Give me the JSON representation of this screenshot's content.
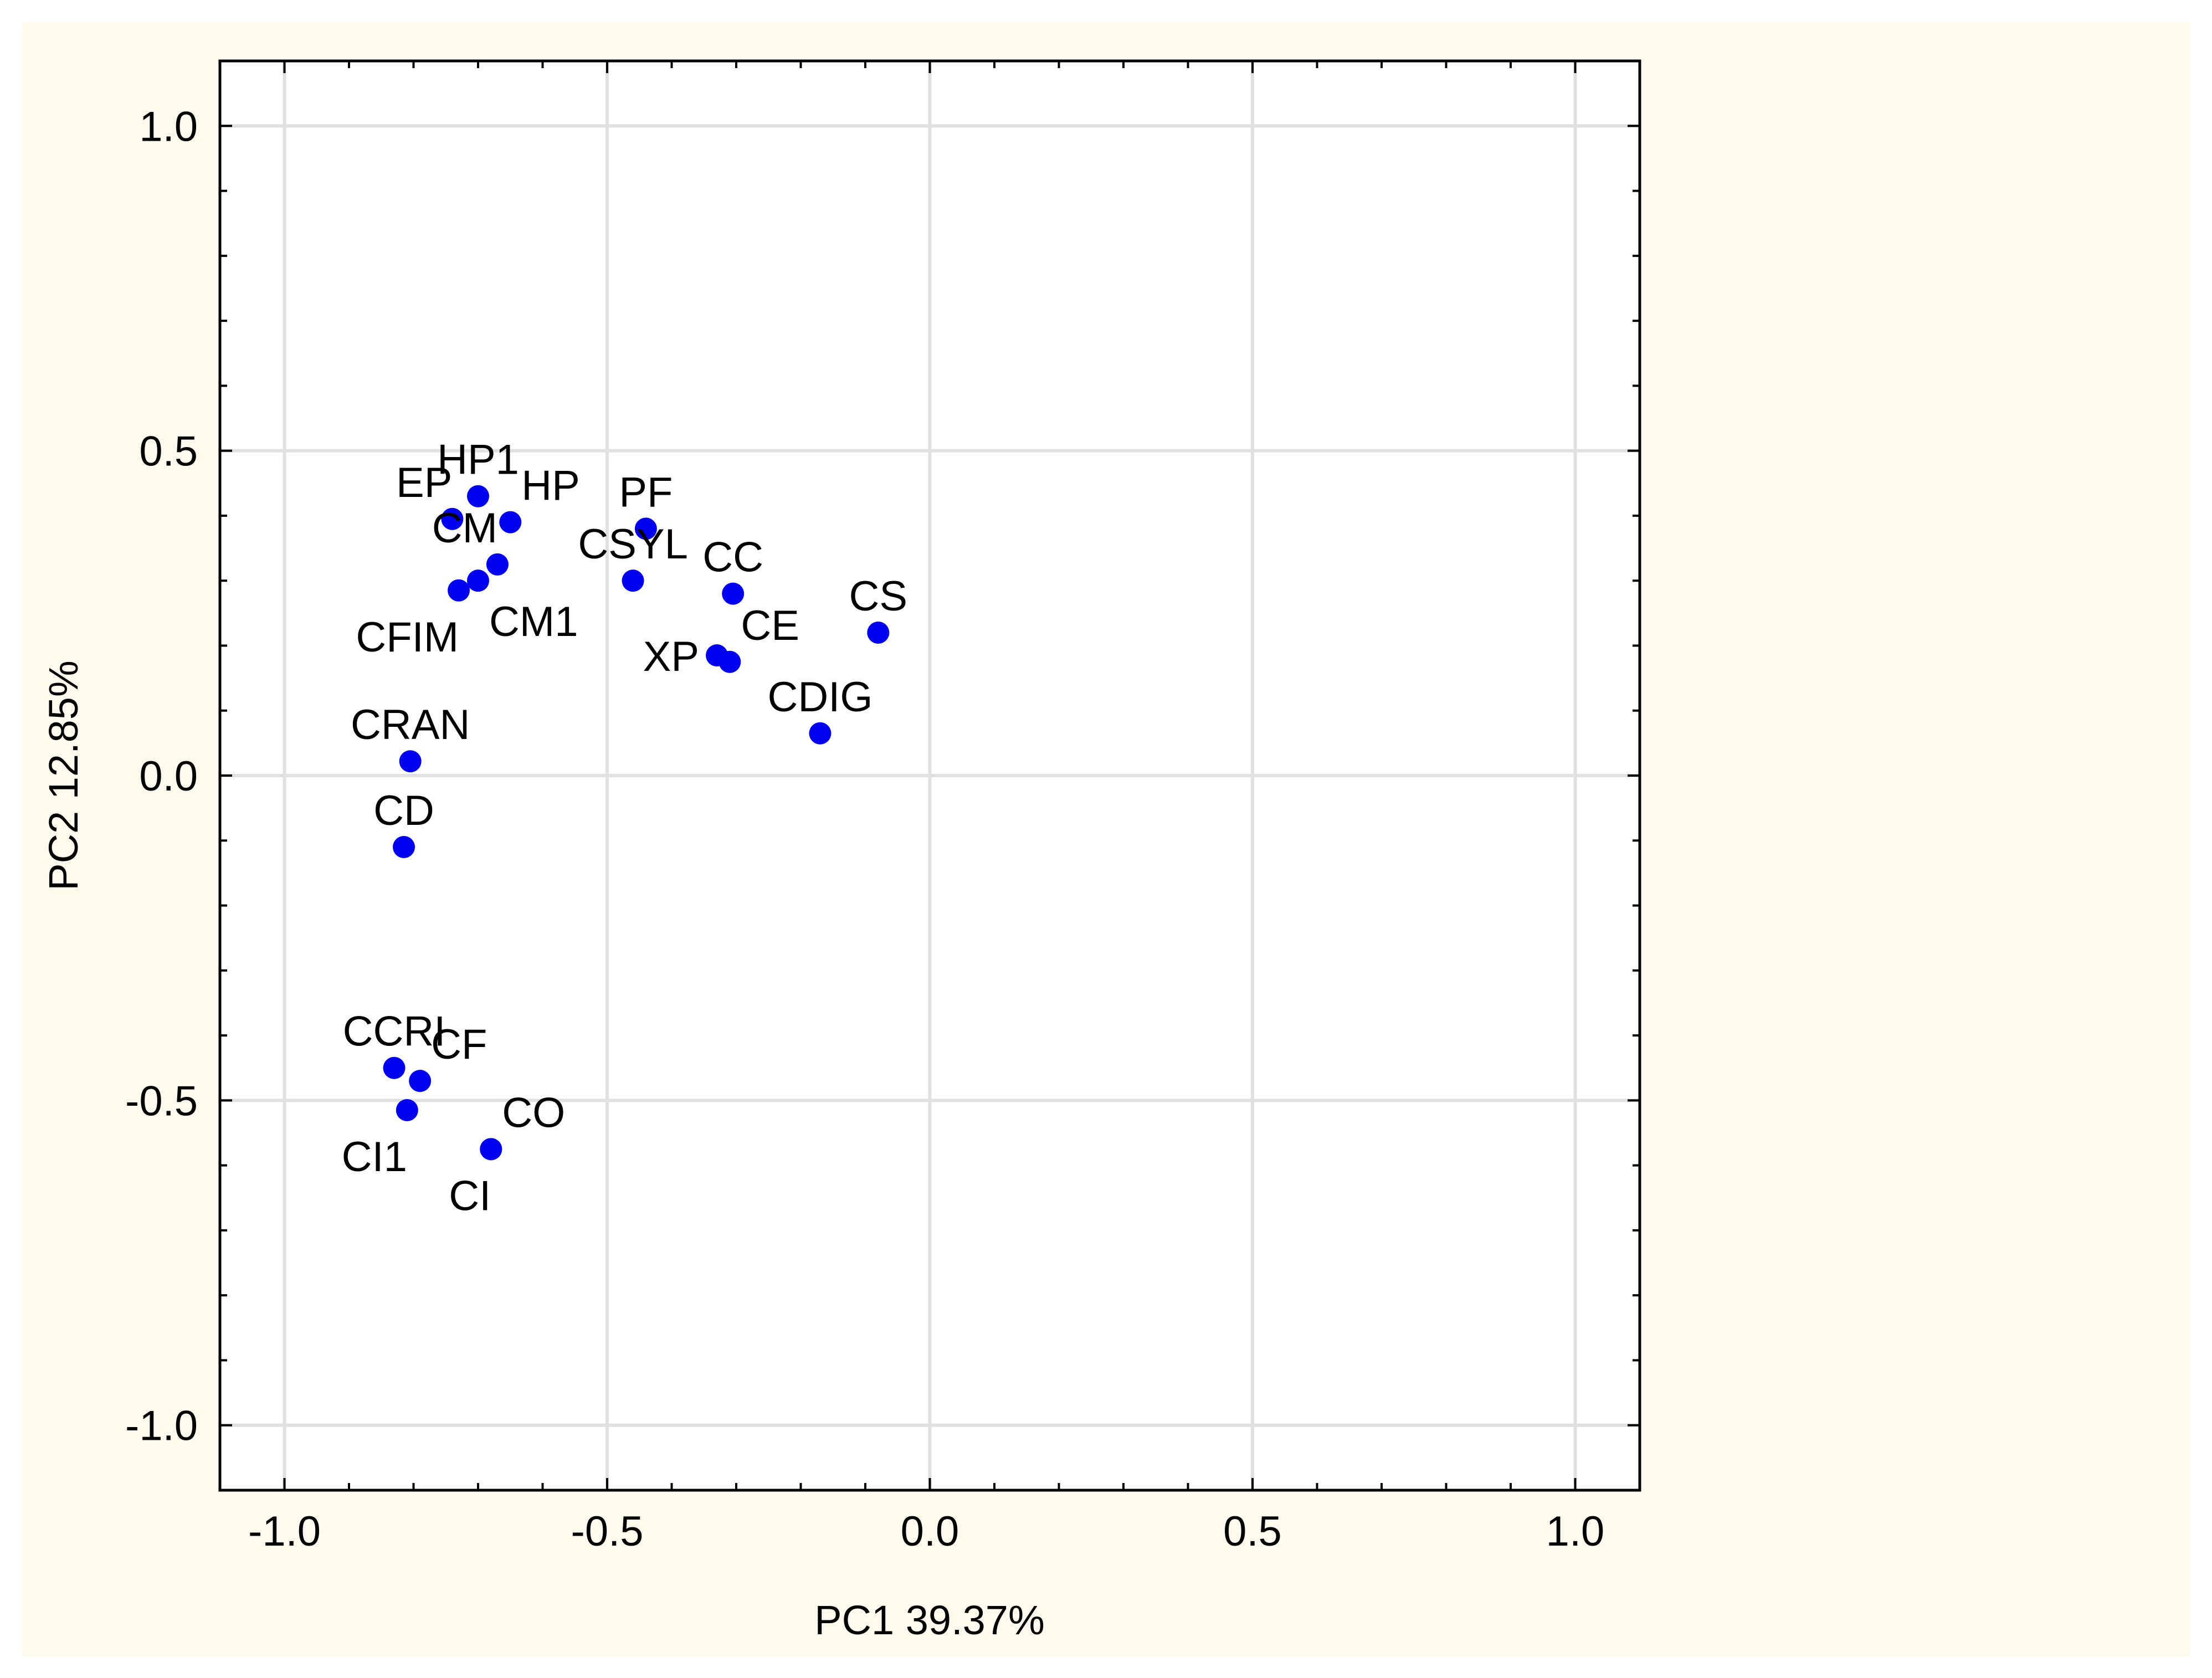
{
  "chart_data": {
    "type": "scatter",
    "title": "",
    "xlabel": "PC1 39.37%",
    "ylabel": "PC2 12.85%",
    "xlim": [
      -1.1,
      1.1
    ],
    "ylim": [
      -1.1,
      1.1
    ],
    "xticks": [
      -1.0,
      -0.5,
      0.0,
      0.5,
      1.0
    ],
    "yticks": [
      -1.0,
      -0.5,
      0.0,
      0.5,
      1.0
    ],
    "xtick_labels": [
      "-1.0",
      "-0.5",
      "0.0",
      "0.5",
      "1.0"
    ],
    "ytick_labels": [
      "-1.0",
      "-0.5",
      "0.0",
      "0.5",
      "1.0"
    ],
    "grid": true,
    "colors": {
      "point": "#0000ee",
      "grid": "#e0e0e0",
      "axis": "#000000",
      "page": "#fef9ed",
      "plot": "#ffffff"
    },
    "points": [
      {
        "label": "HP1",
        "x": -0.7,
        "y": 0.43,
        "label_pos": "above"
      },
      {
        "label": "EP",
        "x": -0.74,
        "y": 0.395,
        "label_pos": "above-left"
      },
      {
        "label": "HP",
        "x": -0.65,
        "y": 0.39,
        "label_pos": "above-right"
      },
      {
        "label": "CM",
        "x": -0.67,
        "y": 0.325,
        "label_pos": "above-left"
      },
      {
        "label": "CM1",
        "x": -0.7,
        "y": 0.3,
        "label_pos": "below-right"
      },
      {
        "label": "CFIM",
        "x": -0.73,
        "y": 0.285,
        "label_pos": "below-left"
      },
      {
        "label": "PF",
        "x": -0.44,
        "y": 0.38,
        "label_pos": "above"
      },
      {
        "label": "CSYL",
        "x": -0.46,
        "y": 0.3,
        "label_pos": "above"
      },
      {
        "label": "CC",
        "x": -0.305,
        "y": 0.28,
        "label_pos": "above"
      },
      {
        "label": "CS",
        "x": -0.08,
        "y": 0.22,
        "label_pos": "above"
      },
      {
        "label": "XP",
        "x": -0.33,
        "y": 0.185,
        "label_pos": "left"
      },
      {
        "label": "CE",
        "x": -0.31,
        "y": 0.175,
        "label_pos": "above-right"
      },
      {
        "label": "CDIG",
        "x": -0.17,
        "y": 0.065,
        "label_pos": "above"
      },
      {
        "label": "CRAN",
        "x": -0.805,
        "y": 0.022,
        "label_pos": "above"
      },
      {
        "label": "CD",
        "x": -0.815,
        "y": -0.11,
        "label_pos": "above"
      },
      {
        "label": "CCRI",
        "x": -0.83,
        "y": -0.45,
        "label_pos": "above"
      },
      {
        "label": "CF",
        "x": -0.79,
        "y": -0.47,
        "label_pos": "above-right"
      },
      {
        "label": "CI1",
        "x": -0.81,
        "y": -0.515,
        "label_pos": "below-left"
      },
      {
        "label": "CO",
        "x": -0.68,
        "y": -0.575,
        "label_pos": "above-right"
      },
      {
        "label": "CI",
        "x": -0.68,
        "y": -0.575,
        "label_pos": "below-left"
      }
    ]
  }
}
